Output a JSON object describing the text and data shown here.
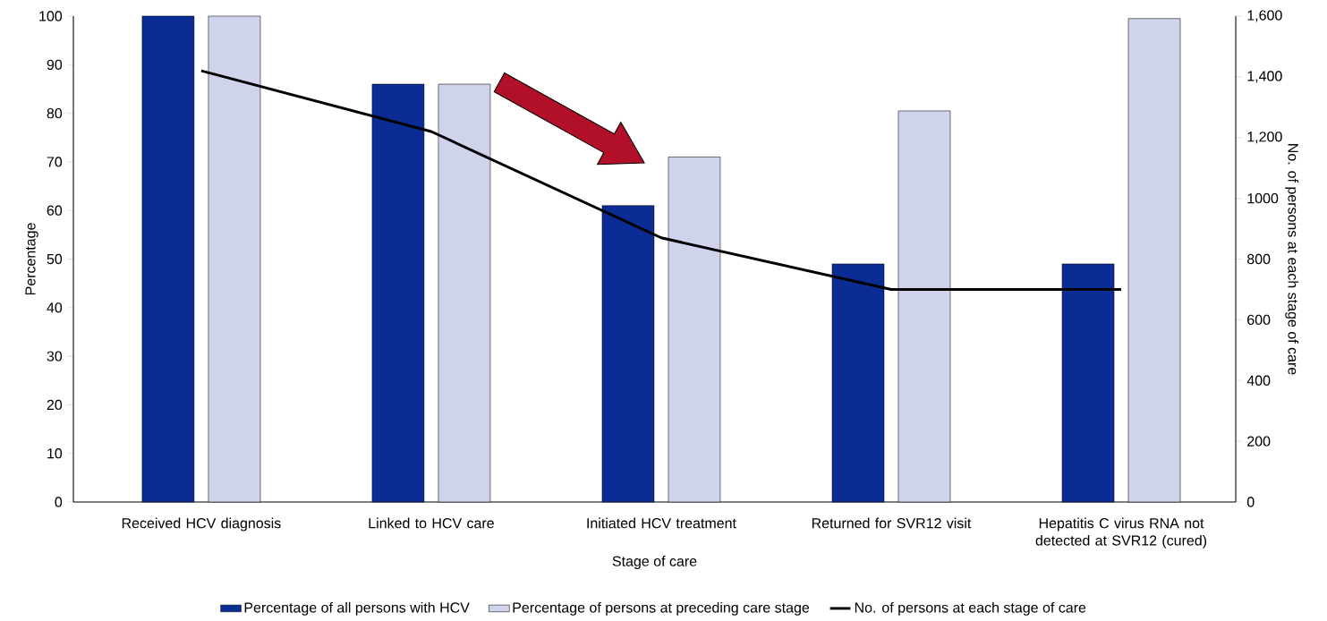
{
  "chart_data": {
    "type": "bar",
    "xlabel": "Stage of care",
    "ylabel": "Percentage",
    "y2label": "No. of persons at each stage of care",
    "categories": [
      "Received HCV diagnosis",
      "Linked to HCV care",
      "Initiated HCV treatment",
      "Returned for SVR12 visit",
      "Hepatitis C virus RNA not detected at SVR12 (cured)"
    ],
    "series": [
      {
        "name": "Percentage of all persons with HCV",
        "color": "#0a2c94",
        "values": [
          100,
          86,
          61,
          49,
          49
        ]
      },
      {
        "name": "Percentage of persons at preceding care stage",
        "color": "#cfd3ec",
        "values": [
          100,
          86,
          71,
          80.5,
          99.5
        ]
      },
      {
        "name": "No. of persons at each stage of care",
        "type": "line",
        "axis": "y2",
        "color": "#000000",
        "values": [
          1420,
          1220,
          870,
          700,
          700
        ]
      }
    ],
    "ylim": [
      0,
      100
    ],
    "yticks": [
      0,
      10,
      20,
      30,
      40,
      50,
      60,
      70,
      80,
      90,
      100
    ],
    "y2lim": [
      0,
      1600
    ],
    "y2ticks": [
      0,
      200,
      400,
      600,
      800,
      1000,
      {
        "value": 1200,
        "label": "1,200"
      },
      {
        "value": 1400,
        "label": "1,400"
      },
      {
        "value": 1600,
        "label": "1,600"
      }
    ],
    "grid": false,
    "legend": "bottom",
    "marker": "none",
    "line_style": "solid"
  }
}
